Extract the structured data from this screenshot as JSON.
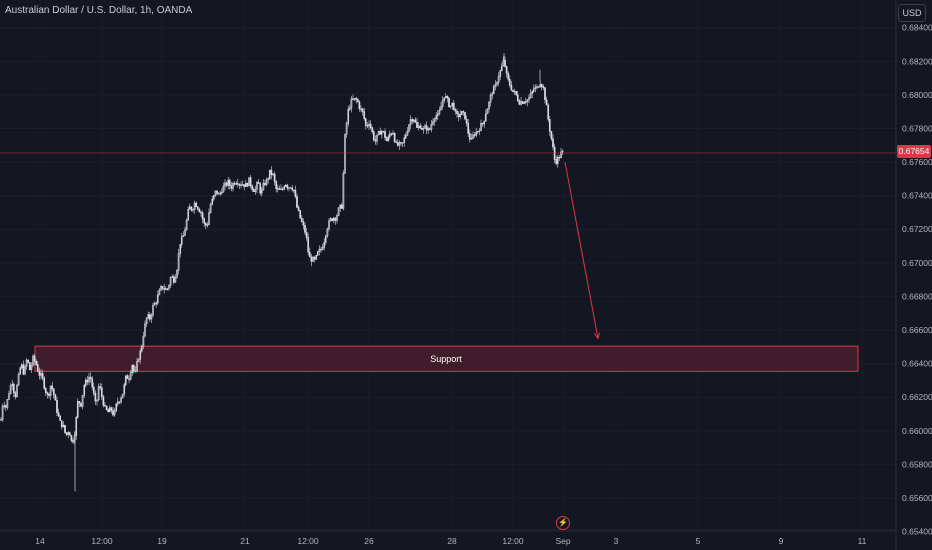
{
  "header": {
    "title": "Australian Dollar / U.S. Dollar, 1h, OANDA",
    "currency": "USD"
  },
  "price_axis": {
    "ticks": [
      "0.68400",
      "0.68200",
      "0.68000",
      "0.67800",
      "0.67600",
      "0.67400",
      "0.67200",
      "0.67000",
      "0.66800",
      "0.66600",
      "0.66400",
      "0.66200",
      "0.66000",
      "0.65800",
      "0.65600",
      "0.65400"
    ],
    "last_price": "0.67654"
  },
  "time_axis": {
    "ticks": [
      "14",
      "12:00",
      "19",
      "21",
      "12:00",
      "26",
      "28",
      "12:00",
      "Sep",
      "3",
      "5",
      "9",
      "11"
    ]
  },
  "annotation": {
    "label": "Support"
  },
  "colors": {
    "background": "#141721",
    "candle": "#d9dbe0",
    "accent_red": "#e0354a",
    "support_fill": "#3f1d2b"
  },
  "chart_data": {
    "type": "candlestick",
    "title": "Australian Dollar / U.S. Dollar, 1h, OANDA",
    "ylim": [
      0.6535,
      0.685
    ],
    "last_price": 0.67654,
    "support_zone": {
      "label": "Support",
      "from": 0.66354,
      "to": 0.66504
    },
    "projection_arrow": {
      "from": 0.676,
      "to": 0.6655
    },
    "path": [
      [
        0,
        0.6601
      ],
      [
        3,
        0.6618
      ],
      [
        6,
        0.6614
      ],
      [
        9,
        0.6623
      ],
      [
        12,
        0.663
      ],
      [
        15,
        0.662
      ],
      [
        18,
        0.663
      ],
      [
        21,
        0.664
      ],
      [
        24,
        0.6634
      ],
      [
        27,
        0.6643
      ],
      [
        30,
        0.6636
      ],
      [
        33,
        0.6643
      ],
      [
        36,
        0.664
      ],
      [
        39,
        0.6634
      ],
      [
        42,
        0.6632
      ],
      [
        45,
        0.6625
      ],
      [
        48,
        0.662
      ],
      [
        51,
        0.6628
      ],
      [
        54,
        0.6621
      ],
      [
        57,
        0.6612
      ],
      [
        60,
        0.6605
      ],
      [
        63,
        0.6603
      ],
      [
        66,
        0.6597
      ],
      [
        69,
        0.6601
      ],
      [
        72,
        0.6592
      ],
      [
        75,
        0.66
      ],
      [
        78,
        0.6618
      ],
      [
        81,
        0.6616
      ],
      [
        84,
        0.6627
      ],
      [
        87,
        0.663
      ],
      [
        90,
        0.6633
      ],
      [
        93,
        0.6624
      ],
      [
        96,
        0.6614
      ],
      [
        99,
        0.6628
      ],
      [
        102,
        0.662
      ],
      [
        105,
        0.6613
      ],
      [
        108,
        0.6611
      ],
      [
        111,
        0.6613
      ],
      [
        114,
        0.6609
      ],
      [
        117,
        0.6617
      ],
      [
        120,
        0.6619
      ],
      [
        123,
        0.6623
      ],
      [
        126,
        0.6632
      ],
      [
        129,
        0.6632
      ],
      [
        132,
        0.664
      ],
      [
        135,
        0.6633
      ],
      [
        138,
        0.6643
      ],
      [
        141,
        0.6648
      ],
      [
        144,
        0.666
      ],
      [
        147,
        0.6668
      ],
      [
        150,
        0.6667
      ],
      [
        153,
        0.6674
      ],
      [
        156,
        0.6677
      ],
      [
        159,
        0.6682
      ],
      [
        162,
        0.6686
      ],
      [
        165,
        0.6684
      ],
      [
        168,
        0.6685
      ],
      [
        171,
        0.6692
      ],
      [
        174,
        0.669
      ],
      [
        177,
        0.6697
      ],
      [
        180,
        0.6712
      ],
      [
        183,
        0.6715
      ],
      [
        186,
        0.6723
      ],
      [
        189,
        0.6733
      ],
      [
        192,
        0.6732
      ],
      [
        195,
        0.6736
      ],
      [
        198,
        0.6733
      ],
      [
        201,
        0.673
      ],
      [
        204,
        0.6723
      ],
      [
        207,
        0.6722
      ],
      [
        210,
        0.6734
      ],
      [
        213,
        0.6738
      ],
      [
        216,
        0.6743
      ],
      [
        219,
        0.674
      ],
      [
        222,
        0.6744
      ],
      [
        225,
        0.6746
      ],
      [
        228,
        0.6748
      ],
      [
        231,
        0.6745
      ],
      [
        234,
        0.6748
      ],
      [
        237,
        0.6749
      ],
      [
        240,
        0.6747
      ],
      [
        243,
        0.6747
      ],
      [
        246,
        0.6746
      ],
      [
        249,
        0.6749
      ],
      [
        252,
        0.6745
      ],
      [
        255,
        0.6743
      ],
      [
        258,
        0.6748
      ],
      [
        261,
        0.6741
      ],
      [
        264,
        0.6747
      ],
      [
        267,
        0.6749
      ],
      [
        270,
        0.6754
      ],
      [
        273,
        0.6752
      ],
      [
        276,
        0.6744
      ],
      [
        279,
        0.6743
      ],
      [
        282,
        0.6743
      ],
      [
        285,
        0.6748
      ],
      [
        288,
        0.6745
      ],
      [
        291,
        0.6746
      ],
      [
        294,
        0.6743
      ],
      [
        297,
        0.6733
      ],
      [
        300,
        0.6727
      ],
      [
        303,
        0.6722
      ],
      [
        306,
        0.6717
      ],
      [
        309,
        0.6703
      ],
      [
        312,
        0.6702
      ],
      [
        315,
        0.6701
      ],
      [
        318,
        0.6706
      ],
      [
        321,
        0.6708
      ],
      [
        324,
        0.6713
      ],
      [
        327,
        0.6721
      ],
      [
        330,
        0.6725
      ],
      [
        333,
        0.6727
      ],
      [
        336,
        0.6727
      ],
      [
        339,
        0.6732
      ],
      [
        342,
        0.6734
      ],
      [
        345,
        0.6775
      ],
      [
        348,
        0.679
      ],
      [
        351,
        0.6796
      ],
      [
        354,
        0.6797
      ],
      [
        357,
        0.6797
      ],
      [
        360,
        0.6792
      ],
      [
        363,
        0.6789
      ],
      [
        366,
        0.6781
      ],
      [
        369,
        0.6784
      ],
      [
        372,
        0.6778
      ],
      [
        375,
        0.6772
      ],
      [
        378,
        0.6776
      ],
      [
        381,
        0.6779
      ],
      [
        384,
        0.6777
      ],
      [
        387,
        0.6772
      ],
      [
        390,
        0.6777
      ],
      [
        393,
        0.6778
      ],
      [
        396,
        0.677
      ],
      [
        399,
        0.677
      ],
      [
        402,
        0.677
      ],
      [
        405,
        0.6775
      ],
      [
        408,
        0.6781
      ],
      [
        411,
        0.6786
      ],
      [
        414,
        0.6786
      ],
      [
        417,
        0.678
      ],
      [
        420,
        0.6782
      ],
      [
        423,
        0.6779
      ],
      [
        426,
        0.6781
      ],
      [
        429,
        0.6778
      ],
      [
        432,
        0.6784
      ],
      [
        435,
        0.6788
      ],
      [
        438,
        0.6787
      ],
      [
        441,
        0.6793
      ],
      [
        444,
        0.68
      ],
      [
        447,
        0.6797
      ],
      [
        450,
        0.6793
      ],
      [
        453,
        0.6795
      ],
      [
        456,
        0.6787
      ],
      [
        459,
        0.6788
      ],
      [
        462,
        0.6789
      ],
      [
        465,
        0.6787
      ],
      [
        468,
        0.6778
      ],
      [
        471,
        0.6772
      ],
      [
        474,
        0.6777
      ],
      [
        477,
        0.6778
      ],
      [
        480,
        0.6781
      ],
      [
        483,
        0.6783
      ],
      [
        486,
        0.679
      ],
      [
        489,
        0.6795
      ],
      [
        492,
        0.6802
      ],
      [
        495,
        0.6804
      ],
      [
        498,
        0.6811
      ],
      [
        501,
        0.6815
      ],
      [
        504,
        0.6821
      ],
      [
        507,
        0.681
      ],
      [
        510,
        0.6806
      ],
      [
        513,
        0.6802
      ],
      [
        516,
        0.68
      ],
      [
        519,
        0.6796
      ],
      [
        522,
        0.6796
      ],
      [
        525,
        0.6797
      ],
      [
        528,
        0.6797
      ],
      [
        531,
        0.68
      ],
      [
        534,
        0.6804
      ],
      [
        537,
        0.6804
      ],
      [
        540,
        0.6808
      ],
      [
        543,
        0.6805
      ],
      [
        546,
        0.6795
      ],
      [
        549,
        0.6782
      ],
      [
        552,
        0.6772
      ],
      [
        555,
        0.676
      ],
      [
        558,
        0.6762
      ],
      [
        561,
        0.6765
      ],
      [
        564,
        0.6766
      ]
    ],
    "outlier_wicks": [
      [
        75,
        0.6564
      ],
      [
        504,
        0.6825
      ],
      [
        540,
        0.6815
      ]
    ]
  }
}
